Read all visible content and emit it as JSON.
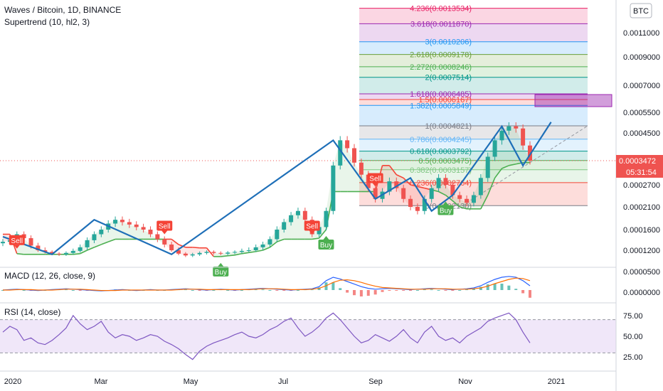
{
  "header": {
    "title": "Waves / Bitcoin, 1D, BINANCE",
    "indicator": "Supertrend (10, hl2, 3)",
    "currency_badge": "BTC"
  },
  "colors": {
    "up": "#26a69a",
    "down": "#ef5350",
    "drawing": "#1e6fb8",
    "supertrend_up": "#4caf50",
    "supertrend_down": "#f44336",
    "macd": "#2962ff",
    "signal": "#ff6d00",
    "rsi": "#7e57c2",
    "rsi_band": "#e9ddf7"
  },
  "chart_data": [
    {
      "type": "candlestick",
      "ylabel_ticks": [
        "0.0011000",
        "0.0009000",
        "0.0007000",
        "0.0005500",
        "0.0004500",
        "0.0003472",
        "0.0002700",
        "0.0002100",
        "0.0001600",
        "0.0001200"
      ],
      "last_price": "0.0003472",
      "countdown": "05:31:54",
      "x_ticks": [
        "2020",
        "Mar",
        "May",
        "Jul",
        "Sep",
        "Nov",
        "2021"
      ],
      "close": [
        0.000135,
        0.000138,
        0.00015,
        0.000142,
        0.000128,
        0.00012,
        0.000115,
        0.00011,
        0.000108,
        0.000112,
        0.000118,
        0.000125,
        0.000138,
        0.00015,
        0.00016,
        0.000172,
        0.00018,
        0.000175,
        0.00017,
        0.000165,
        0.00016,
        0.00015,
        0.00014,
        0.00013,
        0.00012,
        0.00011,
        0.000105,
        0.000108,
        0.000112,
        0.000115,
        0.000112,
        0.00011,
        0.000113,
        0.000115,
        0.000118,
        0.00012,
        0.000125,
        0.00013,
        0.00014,
        0.00016,
        0.000175,
        0.00019,
        0.0002,
        0.00018,
        0.00015,
        0.000165,
        0.0002,
        0.00033,
        0.00042,
        0.00039,
        0.00034,
        0.0003,
        0.00026,
        0.00023,
        0.00025,
        0.00028,
        0.00026,
        0.00023,
        0.00021,
        0.0002,
        0.00023,
        0.00026,
        0.00029,
        0.00027,
        0.00024,
        0.00023,
        0.00022,
        0.00024,
        0.00029,
        0.00036,
        0.00042,
        0.00046,
        0.00048,
        0.00047,
        0.0004,
        0.000347
      ],
      "supertrend": [
        0.00015,
        0.00015,
        0.00011,
        0.000108,
        0.000108,
        0.000108,
        0.000108,
        0.000108,
        0.000108,
        0.000108,
        0.000108,
        0.00011,
        0.00012,
        0.000125,
        0.00013,
        0.000135,
        0.00014,
        0.00014,
        0.00014,
        0.00014,
        0.00014,
        0.00014,
        0.00014,
        0.00014,
        0.00014,
        0.00013,
        0.000125,
        0.000125,
        0.000124,
        0.000124,
        0.000102,
        0.000102,
        0.000104,
        0.000106,
        0.00011,
        0.000113,
        0.000116,
        0.00012,
        0.000125,
        0.000135,
        0.00014,
        0.00014,
        0.00014,
        0.00014,
        0.00014,
        0.000142,
        0.00016,
        0.00025,
        0.00025,
        0.00025,
        0.00025,
        0.00025,
        0.00025,
        0.00025,
        0.00033,
        0.00033,
        0.0003,
        0.00029,
        0.00027,
        0.000265,
        0.00026,
        0.000255,
        0.00025,
        0.00024,
        0.000225,
        0.00021,
        0.000205,
        0.000205,
        0.000205,
        0.00024,
        0.00029,
        0.00032,
        0.00033,
        0.000335,
        0.00034,
        0.00034
      ],
      "signals": [
        {
          "label": "Sell",
          "index": 2
        },
        {
          "label": "Buy",
          "index": 31
        },
        {
          "label": "Sell",
          "index": 23
        },
        {
          "label": "Sell",
          "index": 44
        },
        {
          "label": "Buy",
          "index": 46
        },
        {
          "label": "Sell",
          "index": 53
        },
        {
          "label": "Buy",
          "index": 63
        }
      ],
      "zigzag": [
        {
          "i": 0,
          "v": 0.000145
        },
        {
          "i": 7,
          "v": 0.000108
        },
        {
          "i": 13,
          "v": 0.00018
        },
        {
          "i": 24,
          "v": 0.000108
        },
        {
          "i": 47,
          "v": 0.00042
        },
        {
          "i": 53,
          "v": 0.00023
        },
        {
          "i": 58,
          "v": 0.00029
        },
        {
          "i": 61,
          "v": 0.0002
        },
        {
          "i": 64,
          "v": 0.00024
        },
        {
          "i": 71,
          "v": 0.00048
        },
        {
          "i": 74,
          "v": 0.00033
        },
        {
          "i": 78,
          "v": 0.0005
        }
      ],
      "fib_levels": [
        {
          "label": "4.236(0.0013534)",
          "value": 0.0013534,
          "color": "#e91e63"
        },
        {
          "label": "3.618(0.0011870)",
          "value": 0.001187,
          "color": "#9c27b0"
        },
        {
          "label": "3(0.0010206)",
          "value": 0.0010206,
          "color": "#2196f3"
        },
        {
          "label": "2.618(0.0009178)",
          "value": 0.0009178,
          "color": "#689f38"
        },
        {
          "label": "2.272(0.0008246)",
          "value": 0.0008246,
          "color": "#4caf50"
        },
        {
          "label": "2(0.0007514)",
          "value": 0.0007514,
          "color": "#009688"
        },
        {
          "label": "1.618(0.0006485)",
          "value": 0.0006485,
          "color": "#9c27b0"
        },
        {
          "label": "1.5(0.0006167)",
          "value": 0.0006167,
          "color": "#f44336"
        },
        {
          "label": "1.382(0.0005849)",
          "value": 0.0005849,
          "color": "#2196f3"
        },
        {
          "label": "1(0.0004821)",
          "value": 0.0004821,
          "color": "#787b86"
        },
        {
          "label": "0.786(0.0004245)",
          "value": 0.0004245,
          "color": "#64b5f6"
        },
        {
          "label": "0.618(0.0003792)",
          "value": 0.0003792,
          "color": "#009688"
        },
        {
          "label": "0.5(0.0003475)",
          "value": 0.0003475,
          "color": "#4caf50"
        },
        {
          "label": "0.382(0.0003157)",
          "value": 0.0003157,
          "color": "#81c784"
        },
        {
          "label": "0.236(0.0002764)",
          "value": 0.0002764,
          "color": "#f44336"
        },
        {
          "label": "0(0.0002130)",
          "value": 0.000213,
          "color": "#787b86"
        }
      ]
    },
    {
      "type": "line",
      "title": "MACD (12, 26, close, 9)",
      "y_ticks": [
        "0.0000500",
        "0.0000000"
      ],
      "macd": [
        0,
        1,
        2,
        1,
        0,
        -1,
        0,
        1,
        2,
        3,
        2,
        1,
        0,
        -1,
        -2,
        -1,
        0,
        1,
        0,
        -1,
        0,
        1,
        0,
        0,
        1,
        2,
        3,
        2,
        1,
        0,
        1,
        2,
        1,
        0,
        1,
        2,
        3,
        4,
        3,
        2,
        1,
        0,
        1,
        2,
        3,
        8,
        22,
        30,
        26,
        20,
        14,
        8,
        4,
        2,
        3,
        4,
        3,
        2,
        1,
        2,
        3,
        4,
        3,
        2,
        1,
        2,
        3,
        5,
        10,
        18,
        25,
        30,
        32,
        30,
        22,
        10
      ],
      "signal": [
        0,
        0,
        1,
        1,
        1,
        0,
        0,
        0,
        1,
        2,
        2,
        2,
        1,
        0,
        -1,
        -1,
        -1,
        0,
        0,
        0,
        0,
        0,
        0,
        0,
        0,
        1,
        2,
        2,
        2,
        1,
        1,
        1,
        1,
        1,
        1,
        1,
        2,
        3,
        3,
        3,
        2,
        1,
        1,
        1,
        2,
        4,
        10,
        18,
        23,
        24,
        22,
        18,
        13,
        9,
        6,
        5,
        4,
        3,
        2,
        2,
        2,
        3,
        3,
        3,
        2,
        2,
        2,
        3,
        5,
        9,
        15,
        20,
        25,
        28,
        27,
        22
      ]
    },
    {
      "type": "line",
      "title": "RSI (14, close)",
      "y_ticks": [
        "75.00",
        "50.00",
        "25.00"
      ],
      "band": [
        30,
        70
      ],
      "values": [
        55,
        62,
        58,
        45,
        48,
        42,
        40,
        45,
        52,
        60,
        75,
        65,
        58,
        62,
        68,
        55,
        48,
        52,
        50,
        45,
        48,
        52,
        50,
        44,
        40,
        35,
        28,
        22,
        32,
        38,
        42,
        45,
        48,
        52,
        55,
        50,
        48,
        52,
        58,
        62,
        68,
        72,
        60,
        50,
        55,
        62,
        72,
        78,
        70,
        60,
        50,
        42,
        45,
        52,
        48,
        44,
        50,
        58,
        48,
        42,
        55,
        62,
        50,
        45,
        48,
        42,
        50,
        55,
        60,
        68,
        72,
        75,
        78,
        70,
        55,
        42
      ]
    }
  ]
}
